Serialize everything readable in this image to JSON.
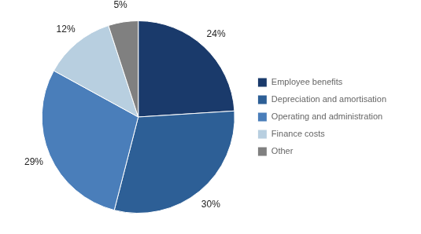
{
  "chart_data": {
    "type": "pie",
    "categories": [
      "Employee benefits",
      "Depreciation and amortisation",
      "Operating and administration",
      "Finance costs",
      "Other"
    ],
    "values": [
      24,
      30,
      29,
      12,
      5
    ],
    "value_labels": [
      "24%",
      "30%",
      "29%",
      "12%",
      "5%"
    ],
    "colors": [
      "#1a3a6b",
      "#2d5f96",
      "#4a7eba",
      "#b8cfe0",
      "#808080"
    ],
    "data_labels": true,
    "legend": "right"
  }
}
